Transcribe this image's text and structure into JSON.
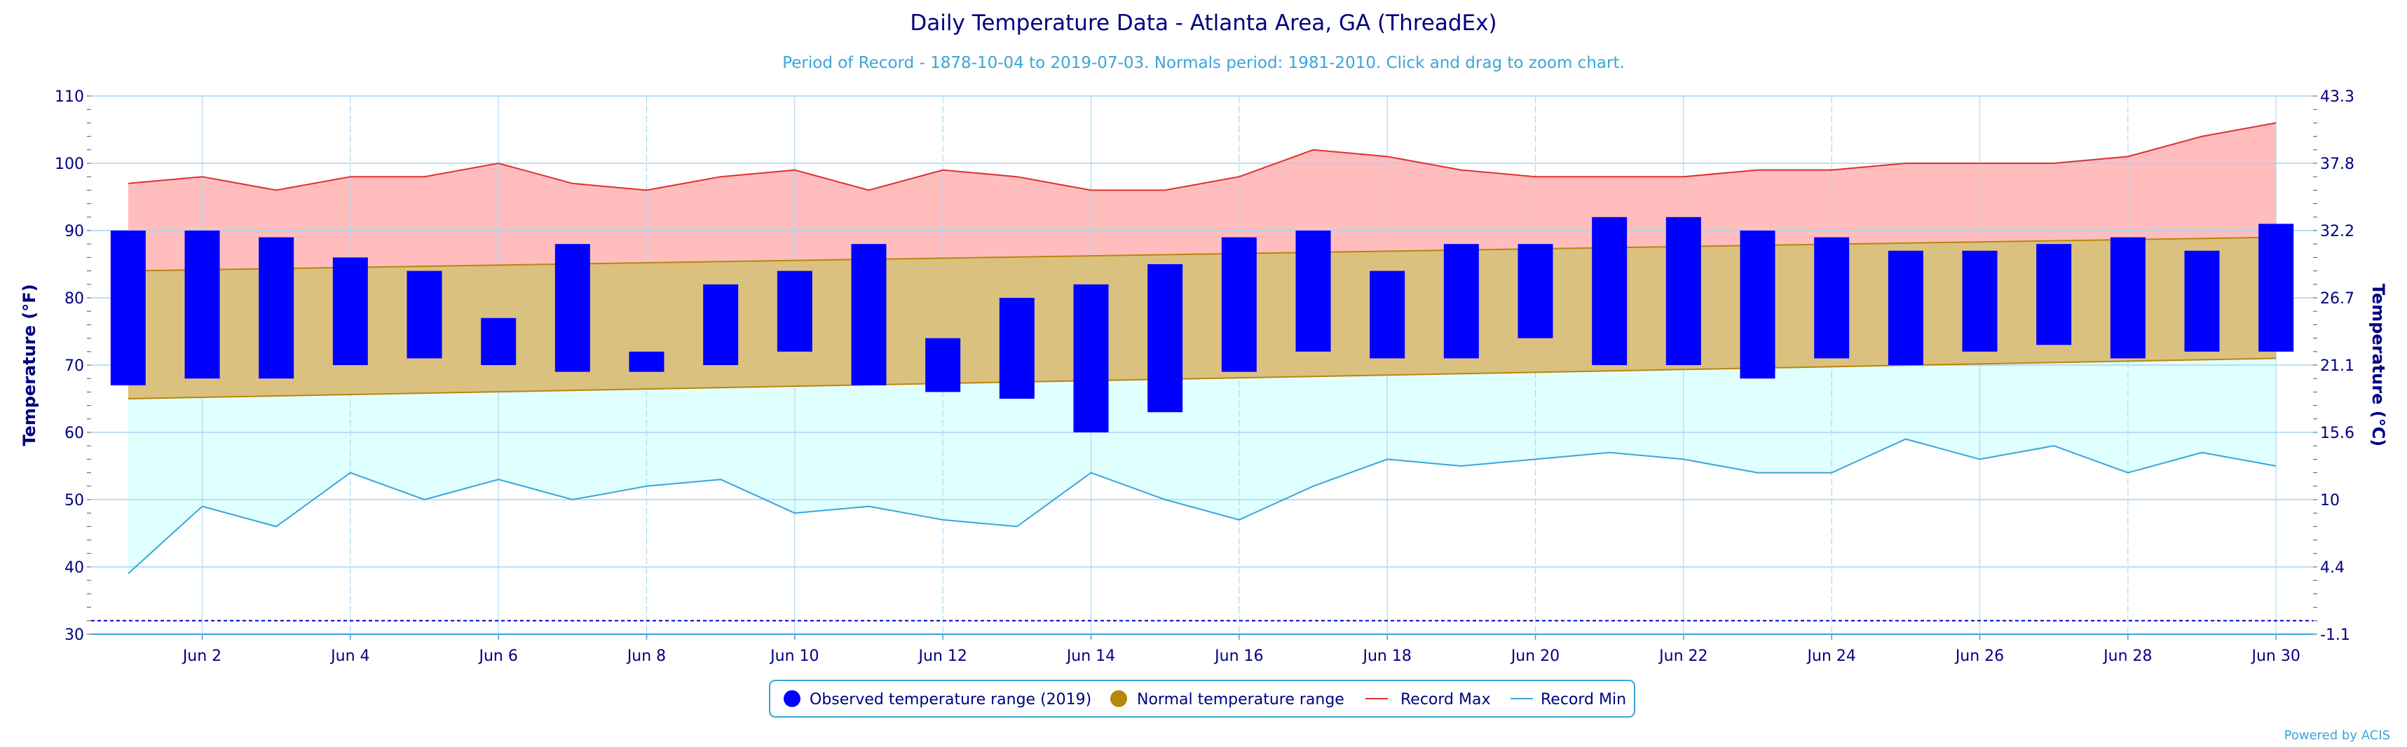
{
  "chart_data": {
    "type": "bar",
    "title": "Daily Temperature Data - Atlanta Area, GA (ThreadEx)",
    "subtitle": "Period of Record - 1878-10-04 to 2019-07-03. Normals period: 1981-2010. Click and drag to zoom chart.",
    "ylabel": "Temperature (°F)",
    "ylabel_right": "Temperature (°C)",
    "ylim": [
      30,
      110
    ],
    "y_ticks": [
      30,
      40,
      50,
      60,
      70,
      80,
      90,
      100,
      110
    ],
    "y_right_ticks": [
      "-1.1",
      "4.4",
      "10",
      "15.6",
      "21.1",
      "26.7",
      "32.2",
      "37.8",
      "43.3"
    ],
    "x_tick_labels": [
      "Jun 2",
      "Jun 4",
      "Jun 6",
      "Jun 8",
      "Jun 10",
      "Jun 12",
      "Jun 14",
      "Jun 16",
      "Jun 18",
      "Jun 20",
      "Jun 22",
      "Jun 24",
      "Jun 26",
      "Jun 28",
      "Jun 30"
    ],
    "days": [
      1,
      2,
      3,
      4,
      5,
      6,
      7,
      8,
      9,
      10,
      11,
      12,
      13,
      14,
      15,
      16,
      17,
      18,
      19,
      20,
      21,
      22,
      23,
      24,
      25,
      26,
      27,
      28,
      29,
      30
    ],
    "grid": true,
    "freezing_line": 32,
    "series": [
      {
        "name": "Observed temperature range (2019)",
        "color": "#0000ff",
        "low": [
          67,
          68,
          68,
          70,
          71,
          70,
          69,
          69,
          70,
          72,
          67,
          66,
          65,
          60,
          63,
          69,
          72,
          71,
          71,
          74,
          70,
          70,
          68,
          71,
          70,
          72,
          73,
          71,
          72,
          72
        ],
        "high": [
          90,
          90,
          89,
          86,
          84,
          77,
          88,
          72,
          82,
          84,
          88,
          74,
          80,
          82,
          85,
          89,
          90,
          84,
          88,
          88,
          92,
          92,
          90,
          89,
          87,
          87,
          88,
          89,
          87,
          91
        ]
      },
      {
        "name": "Normal temperature range",
        "color": "#b8860b",
        "low_start": 65,
        "low_end": 71,
        "high_start": 84,
        "high_end": 89
      },
      {
        "name": "Record Max",
        "color": "#e03030",
        "values": [
          97,
          98,
          96,
          98,
          98,
          100,
          97,
          96,
          98,
          99,
          96,
          99,
          98,
          96,
          96,
          98,
          102,
          101,
          99,
          98,
          98,
          98,
          99,
          99,
          100,
          100,
          100,
          101,
          104,
          106
        ]
      },
      {
        "name": "Record Min",
        "color": "#3aa5d8",
        "values": [
          39,
          49,
          46,
          54,
          50,
          53,
          50,
          52,
          53,
          48,
          49,
          47,
          46,
          54,
          50,
          47,
          52,
          56,
          55,
          56,
          57,
          56,
          54,
          54,
          59,
          56,
          58,
          54,
          57,
          55
        ]
      }
    ],
    "legend": {
      "position": "bottom-center",
      "items": [
        {
          "label": "Observed temperature range (2019)",
          "symbol": "circle",
          "color": "#0000ff"
        },
        {
          "label": "Normal temperature range",
          "symbol": "circle",
          "color": "#b8860b"
        },
        {
          "label": "Record Max",
          "symbol": "line",
          "color": "#e03030"
        },
        {
          "label": "Record Min",
          "symbol": "line",
          "color": "#3aa5d8"
        }
      ]
    },
    "credits": "Powered by ACIS"
  }
}
